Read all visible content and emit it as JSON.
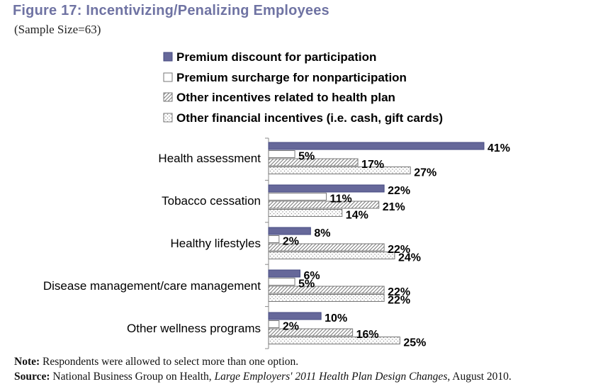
{
  "title": "Figure 17: Incentivizing/Penalizing Employees",
  "subtitle": "(Sample Size=63)",
  "chart_data": {
    "type": "bar",
    "orientation": "horizontal",
    "categories": [
      "Health assessment",
      "Tobacco cessation",
      "Healthy lifestyles",
      "Disease management/care management",
      "Other wellness programs"
    ],
    "series": [
      {
        "name": "Premium discount for participation",
        "values": [
          41,
          22,
          8,
          6,
          10
        ],
        "labels": [
          "41%",
          "22%",
          "8%",
          "6%",
          "10%"
        ],
        "fill": "solid",
        "color": "#66689a"
      },
      {
        "name": "Premium surcharge for nonparticipation",
        "values": [
          5,
          11,
          2,
          5,
          2
        ],
        "labels": [
          "5%",
          "11%",
          "2%",
          "5%",
          "2%"
        ],
        "fill": "white",
        "color": "#ffffff"
      },
      {
        "name": "Other incentives related to health plan",
        "values": [
          17,
          21,
          22,
          22,
          16
        ],
        "labels": [
          "17%",
          "21%",
          "22%",
          "22%",
          "16%"
        ],
        "fill": "diagonal-hatch",
        "color": "#8a8a8a"
      },
      {
        "name": "Other financial incentives (i.e. cash, gift cards)",
        "values": [
          27,
          14,
          24,
          22,
          25
        ],
        "labels": [
          "27%",
          "14%",
          "24%",
          "22%",
          "25%"
        ],
        "fill": "dotted",
        "color": "#b0b0b0"
      }
    ],
    "xlim": [
      0,
      41
    ],
    "grid": false,
    "legend_position": "top"
  },
  "notes": {
    "note_label": "Note:",
    "note_text": " Respondents were allowed to select more than one option.",
    "source_label": "Source:",
    "source_text_1": " National Business Group on Health, ",
    "source_title": "Large Employers' 2011 Health Plan Design Changes",
    "source_text_2": ", August 2010."
  }
}
